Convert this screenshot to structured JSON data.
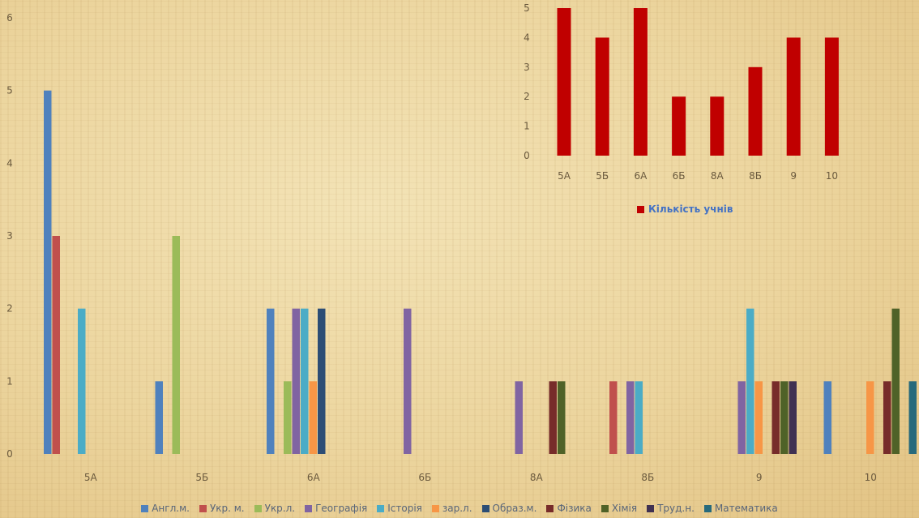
{
  "chart_data": [
    {
      "type": "bar",
      "categories": [
        "5А",
        "5Б",
        "6А",
        "6Б",
        "8А",
        "8Б",
        "9",
        "10"
      ],
      "ylim": [
        0,
        6
      ],
      "yticks": [
        "0",
        "1",
        "2",
        "3",
        "4",
        "5",
        "6"
      ],
      "legend_position": "bottom",
      "grid": false,
      "series": [
        {
          "name": "Англ.м.",
          "color": "#4f81bd",
          "values": [
            5,
            1,
            2,
            0,
            0,
            0,
            0,
            1
          ]
        },
        {
          "name": "Укр. м.",
          "color": "#c0504d",
          "values": [
            3,
            0,
            0,
            0,
            0,
            1,
            0,
            0
          ]
        },
        {
          "name": "Укр.л.",
          "color": "#9bbb59",
          "values": [
            0,
            3,
            1,
            0,
            0,
            0,
            0,
            0
          ]
        },
        {
          "name": "Географія",
          "color": "#8064a2",
          "values": [
            0,
            0,
            2,
            2,
            1,
            1,
            1,
            0
          ]
        },
        {
          "name": "Історія",
          "color": "#4bacc6",
          "values": [
            2,
            0,
            2,
            0,
            0,
            1,
            2,
            0
          ]
        },
        {
          "name": "зар.л.",
          "color": "#f79646",
          "values": [
            0,
            0,
            1,
            0,
            0,
            0,
            1,
            1
          ]
        },
        {
          "name": "Образ.м.",
          "color": "#2c4d75",
          "values": [
            0,
            0,
            2,
            0,
            0,
            0,
            0,
            0
          ]
        },
        {
          "name": "Фізика",
          "color": "#772c2a",
          "values": [
            0,
            0,
            0,
            0,
            1,
            0,
            1,
            1
          ]
        },
        {
          "name": "Хімія",
          "color": "#4f6228",
          "values": [
            0,
            0,
            0,
            0,
            1,
            0,
            1,
            2
          ]
        },
        {
          "name": "Труд.н.",
          "color": "#403152",
          "values": [
            0,
            0,
            0,
            0,
            0,
            0,
            1,
            0
          ]
        },
        {
          "name": "Математика",
          "color": "#276a7c",
          "values": [
            0,
            0,
            0,
            0,
            0,
            0,
            0,
            1
          ]
        }
      ]
    },
    {
      "type": "bar",
      "categories": [
        "5А",
        "5Б",
        "6А",
        "6Б",
        "8А",
        "8Б",
        "9",
        "10"
      ],
      "ylim": [
        0,
        5
      ],
      "yticks": [
        "0",
        "1",
        "2",
        "3",
        "4",
        "5"
      ],
      "legend_position": "bottom",
      "grid": false,
      "series": [
        {
          "name": "Кількість учнів",
          "color": "#c00000",
          "values": [
            5,
            4,
            5,
            2,
            2,
            3,
            4,
            4
          ]
        }
      ]
    }
  ]
}
